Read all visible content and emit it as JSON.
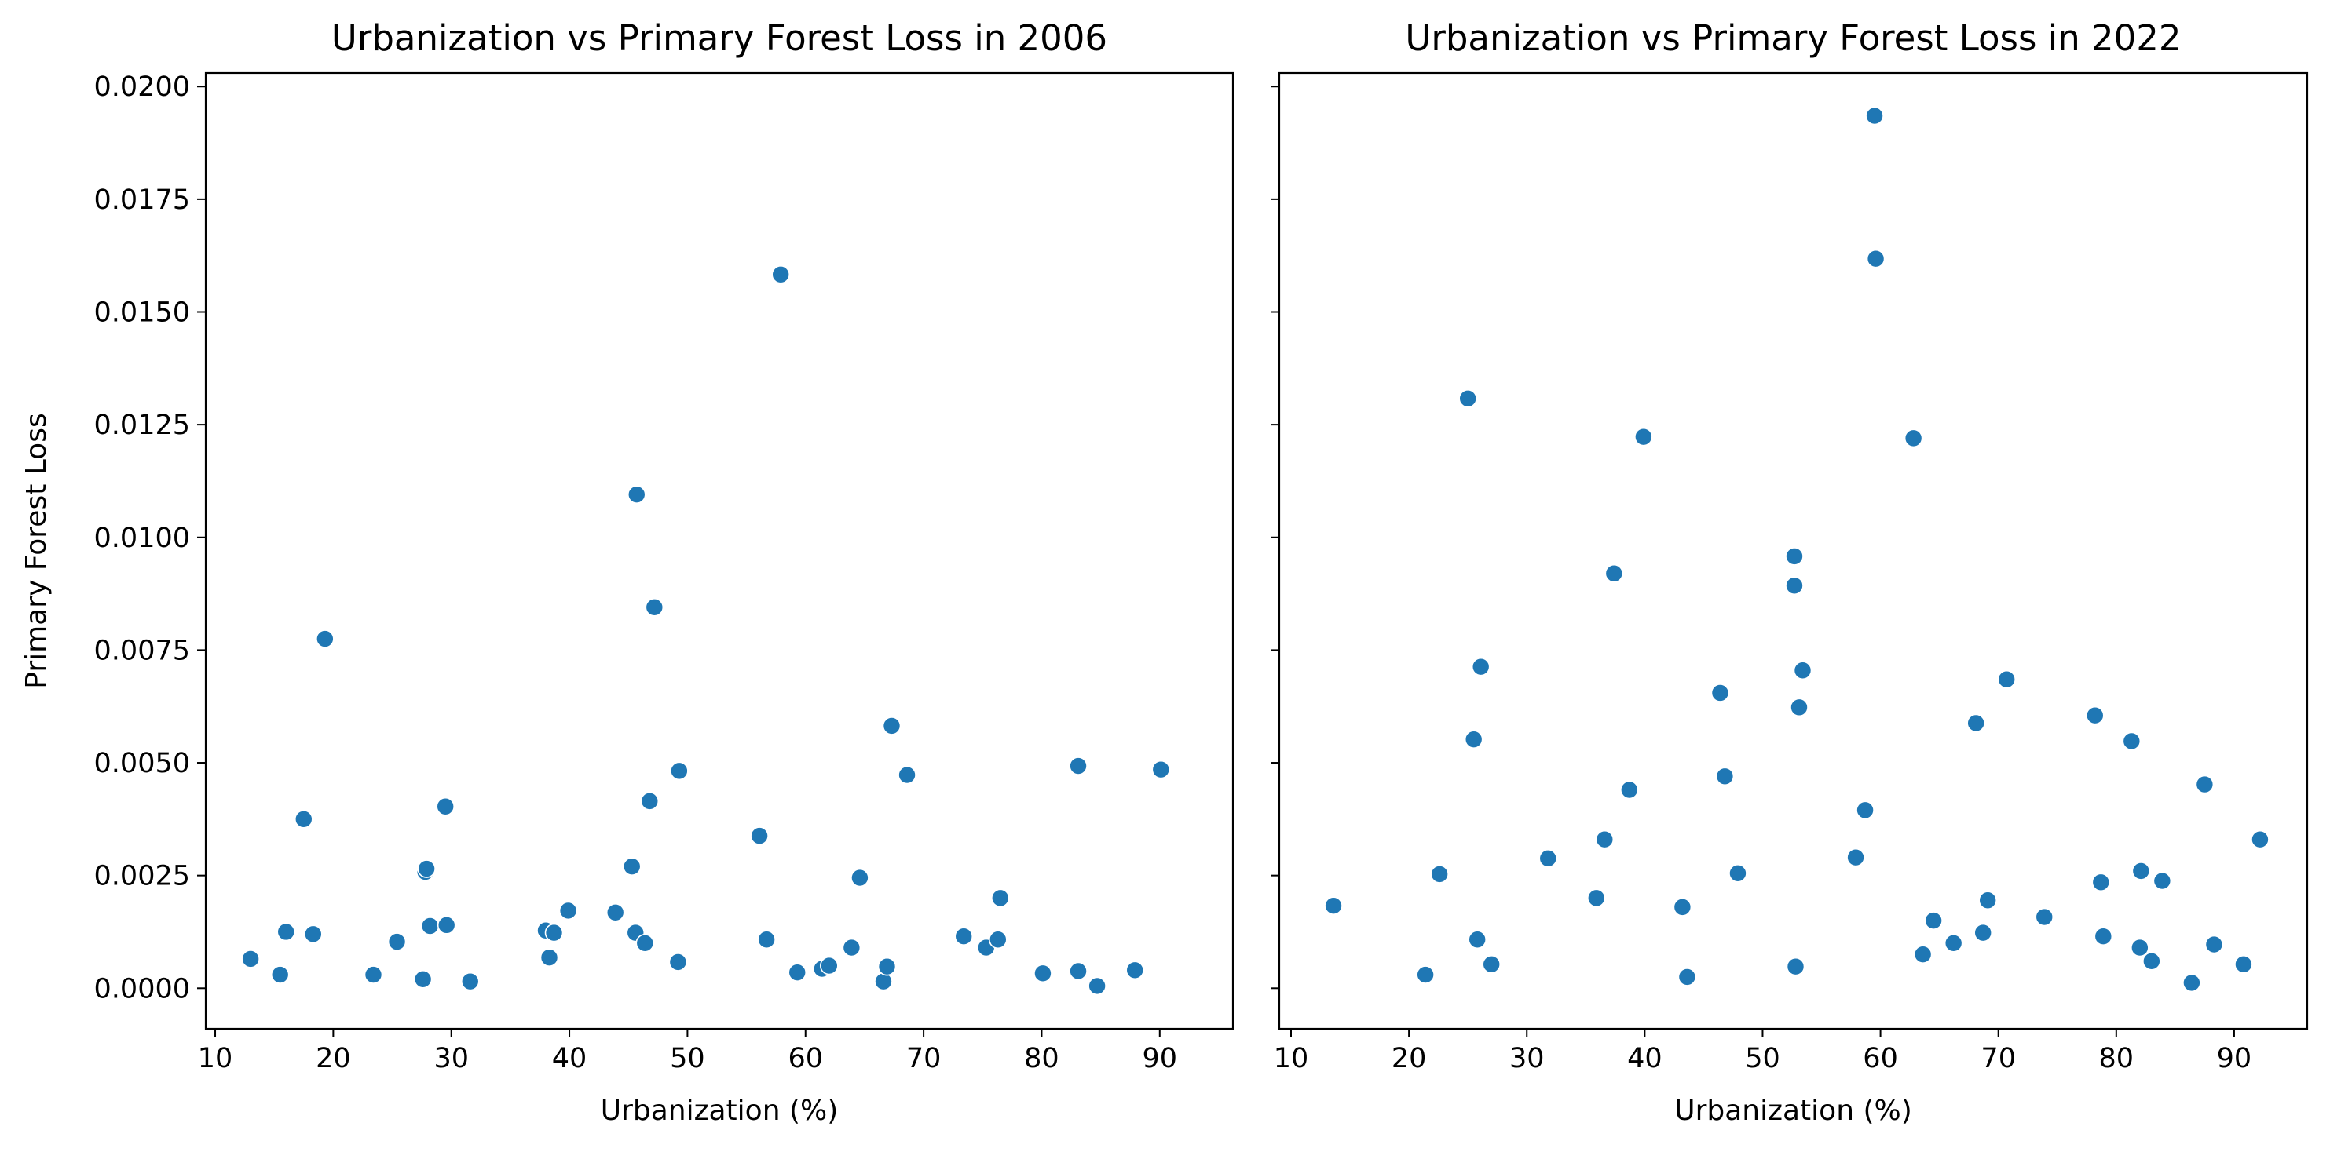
{
  "chart_data": [
    {
      "type": "scatter",
      "title": "Urbanization vs Primary Forest Loss in 2006",
      "xlabel": "Urbanization (%)",
      "ylabel": "Primary Forest Loss",
      "xlim": [
        9.2,
        96.2
      ],
      "ylim": [
        -0.0009,
        0.0203
      ],
      "xticks": [
        10,
        20,
        30,
        40,
        50,
        60,
        70,
        80,
        90
      ],
      "xtick_labels": [
        "10",
        "20",
        "30",
        "40",
        "50",
        "60",
        "70",
        "80",
        "90"
      ],
      "yticks": [
        0.0,
        0.0025,
        0.005,
        0.0075,
        0.01,
        0.0125,
        0.015,
        0.0175,
        0.02
      ],
      "ytick_labels": [
        "0.0000",
        "0.0025",
        "0.0050",
        "0.0075",
        "0.0100",
        "0.0125",
        "0.0150",
        "0.0175",
        "0.0200"
      ],
      "grid": false,
      "color": "#1f77b4",
      "points": [
        [
          13.0,
          0.00065
        ],
        [
          15.5,
          0.0003
        ],
        [
          16.0,
          0.00125
        ],
        [
          17.5,
          0.00375
        ],
        [
          18.3,
          0.0012
        ],
        [
          19.3,
          0.00775
        ],
        [
          23.4,
          0.0003
        ],
        [
          25.4,
          0.00103
        ],
        [
          27.6,
          0.0002
        ],
        [
          27.8,
          0.00258
        ],
        [
          27.9,
          0.00265
        ],
        [
          28.2,
          0.00138
        ],
        [
          29.5,
          0.00403
        ],
        [
          29.6,
          0.0014
        ],
        [
          31.6,
          0.00015
        ],
        [
          38.0,
          0.00128
        ],
        [
          38.3,
          0.00068
        ],
        [
          38.7,
          0.00123
        ],
        [
          39.9,
          0.00172
        ],
        [
          43.9,
          0.00168
        ],
        [
          45.3,
          0.0027
        ],
        [
          45.6,
          0.00123
        ],
        [
          45.7,
          0.01095
        ],
        [
          46.4,
          0.001
        ],
        [
          46.8,
          0.00415
        ],
        [
          47.2,
          0.00845
        ],
        [
          49.2,
          0.00058
        ],
        [
          49.3,
          0.00482
        ],
        [
          56.1,
          0.00338
        ],
        [
          56.7,
          0.00108
        ],
        [
          57.9,
          0.01583
        ],
        [
          59.3,
          0.00035
        ],
        [
          61.4,
          0.00043
        ],
        [
          62.0,
          0.0005
        ],
        [
          63.9,
          0.0009
        ],
        [
          64.6,
          0.00245
        ],
        [
          66.6,
          0.00015
        ],
        [
          66.9,
          0.00048
        ],
        [
          67.3,
          0.00582
        ],
        [
          68.6,
          0.00473
        ],
        [
          73.4,
          0.00115
        ],
        [
          75.3,
          0.0009
        ],
        [
          76.3,
          0.00108
        ],
        [
          76.5,
          0.002
        ],
        [
          80.1,
          0.00033
        ],
        [
          83.1,
          0.00493
        ],
        [
          83.1,
          0.00038
        ],
        [
          84.7,
          5e-05
        ],
        [
          87.9,
          0.0004
        ],
        [
          90.1,
          0.00485
        ]
      ]
    },
    {
      "type": "scatter",
      "title": "Urbanization vs Primary Forest Loss in 2022",
      "xlabel": "Urbanization (%)",
      "ylabel": "",
      "xlim": [
        9.0,
        96.2
      ],
      "ylim": [
        -0.0009,
        0.0203
      ],
      "xticks": [
        10,
        20,
        30,
        40,
        50,
        60,
        70,
        80,
        90
      ],
      "xtick_labels": [
        "10",
        "20",
        "30",
        "40",
        "50",
        "60",
        "70",
        "80",
        "90"
      ],
      "yticks": [
        0.0,
        0.0025,
        0.005,
        0.0075,
        0.01,
        0.0125,
        0.015,
        0.0175,
        0.02
      ],
      "ytick_labels": [],
      "grid": false,
      "color": "#1f77b4",
      "points": [
        [
          13.6,
          0.00183
        ],
        [
          21.4,
          0.0003
        ],
        [
          22.6,
          0.00253
        ],
        [
          25.0,
          0.01308
        ],
        [
          25.5,
          0.00552
        ],
        [
          25.8,
          0.00108
        ],
        [
          26.1,
          0.00713
        ],
        [
          27.0,
          0.00053
        ],
        [
          31.8,
          0.00288
        ],
        [
          35.9,
          0.002
        ],
        [
          36.6,
          0.0033
        ],
        [
          37.4,
          0.0092
        ],
        [
          38.7,
          0.0044
        ],
        [
          39.9,
          0.01223
        ],
        [
          43.2,
          0.0018
        ],
        [
          43.6,
          0.00025
        ],
        [
          46.4,
          0.00655
        ],
        [
          46.8,
          0.0047
        ],
        [
          47.9,
          0.00255
        ],
        [
          52.7,
          0.00958
        ],
        [
          52.7,
          0.00893
        ],
        [
          52.8,
          0.00048
        ],
        [
          53.1,
          0.00623
        ],
        [
          53.4,
          0.00705
        ],
        [
          57.9,
          0.0029
        ],
        [
          58.7,
          0.00395
        ],
        [
          59.5,
          0.01935
        ],
        [
          59.6,
          0.01618
        ],
        [
          62.8,
          0.0122
        ],
        [
          63.6,
          0.00075
        ],
        [
          64.5,
          0.0015
        ],
        [
          66.2,
          0.001
        ],
        [
          68.1,
          0.00588
        ],
        [
          68.7,
          0.00123
        ],
        [
          69.1,
          0.00195
        ],
        [
          70.7,
          0.00685
        ],
        [
          73.9,
          0.00158
        ],
        [
          78.2,
          0.00605
        ],
        [
          78.7,
          0.00235
        ],
        [
          78.9,
          0.00115
        ],
        [
          81.3,
          0.00548
        ],
        [
          82.0,
          0.0009
        ],
        [
          82.1,
          0.0026
        ],
        [
          83.0,
          0.0006
        ],
        [
          83.9,
          0.00238
        ],
        [
          86.4,
          0.00012
        ],
        [
          87.5,
          0.00452
        ],
        [
          88.3,
          0.00097
        ],
        [
          90.8,
          0.00053
        ],
        [
          92.2,
          0.0033
        ]
      ]
    }
  ]
}
